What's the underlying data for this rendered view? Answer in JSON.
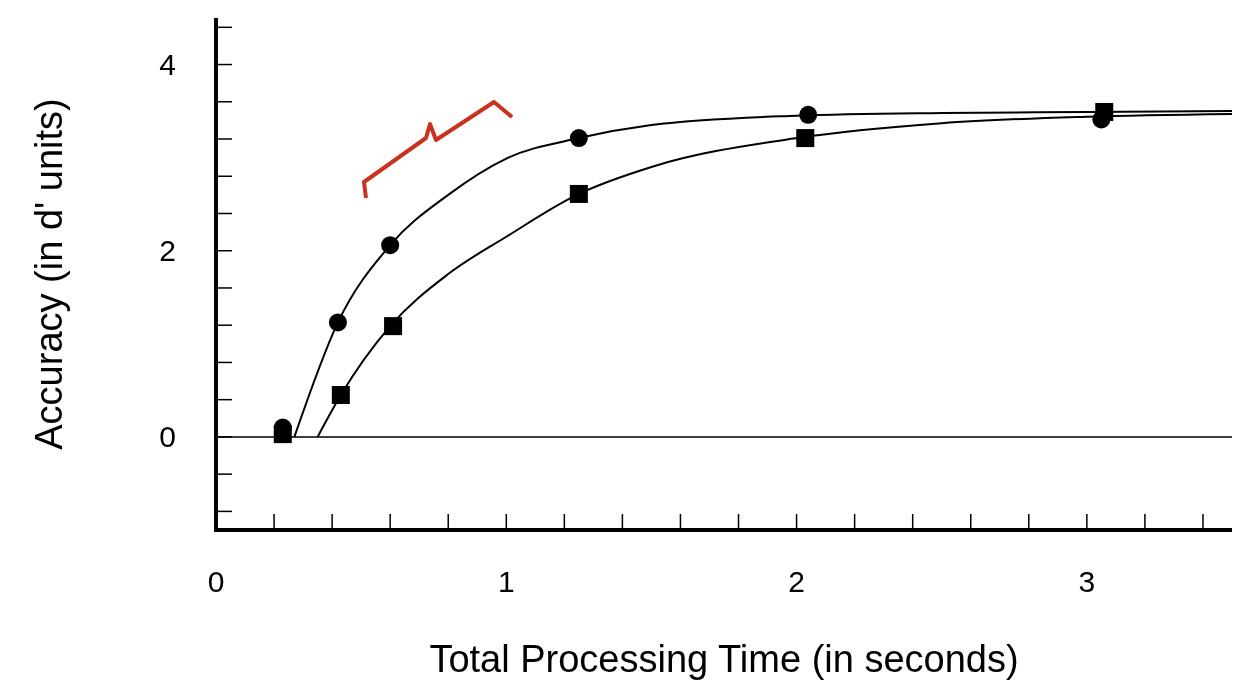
{
  "chart_data": {
    "type": "scatter",
    "xlabel": "Total Processing Time (in seconds)",
    "ylabel": "Accuracy (in d' units)",
    "xlim": [
      0,
      3.5
    ],
    "ylim": [
      -1,
      4.5
    ],
    "xticks": [
      0,
      {
        "value": 0.2,
        "label": null
      },
      {
        "value": 0.4,
        "label": null
      },
      {
        "value": 0.6,
        "label": null
      },
      {
        "value": 0.8,
        "label": null
      },
      1,
      {
        "value": 1.2,
        "label": null
      },
      {
        "value": 1.4,
        "label": null
      },
      {
        "value": 1.6,
        "label": null
      },
      {
        "value": 1.8,
        "label": null
      },
      2,
      {
        "value": 2.2,
        "label": null
      },
      {
        "value": 2.4,
        "label": null
      },
      {
        "value": 2.6,
        "label": null
      },
      {
        "value": 2.8,
        "label": null
      },
      3,
      {
        "value": 3.2,
        "label": null
      },
      {
        "value": 3.4,
        "label": null
      }
    ],
    "yticks": [
      {
        "value": -0.8,
        "label": null
      },
      {
        "value": -0.4,
        "label": null
      },
      0,
      {
        "value": 0.4,
        "label": null
      },
      {
        "value": 0.8,
        "label": null
      },
      {
        "value": 1.2,
        "label": null
      },
      {
        "value": 1.6,
        "label": null
      },
      2,
      {
        "value": 2.4,
        "label": null
      },
      {
        "value": 2.8,
        "label": null
      },
      {
        "value": 3.2,
        "label": null
      },
      {
        "value": 3.6,
        "label": null
      },
      4,
      {
        "value": 4.4,
        "label": null
      }
    ],
    "grid": false,
    "ref_lines": [
      {
        "axis": "y",
        "value": 0,
        "color": "#000000"
      }
    ],
    "series": [
      {
        "type": "line",
        "color": "#000000",
        "marker": "none",
        "line_style": "solid",
        "x": [
          0.27,
          0.42,
          0.6,
          0.8,
          1,
          1.25,
          1.5,
          2,
          2.5,
          3,
          3.5
        ],
        "values": [
          0,
          1.23,
          2.06,
          2.6,
          2.99,
          3.21,
          3.35,
          3.45,
          3.48,
          3.49,
          3.5
        ]
      },
      {
        "type": "line",
        "color": "#000000",
        "marker": "none",
        "line_style": "solid",
        "x": [
          0.35,
          0.43,
          0.6,
          0.8,
          1,
          1.25,
          1.5,
          2,
          2.5,
          3,
          3.5
        ],
        "values": [
          0,
          0.45,
          1.19,
          1.75,
          2.15,
          2.61,
          2.9,
          3.21,
          3.37,
          3.44,
          3.47
        ]
      },
      {
        "color": "#000000",
        "marker": "square",
        "x": [
          0.23,
          0.43,
          0.61,
          1.25,
          2.03,
          3.06
        ],
        "values": [
          0.03,
          0.45,
          1.19,
          2.61,
          3.21,
          3.49
        ]
      },
      {
        "color": "#000000",
        "marker": "circle",
        "x": [
          0.23,
          0.42,
          0.6,
          1.25,
          2.04,
          3.05
        ],
        "values": [
          0.1,
          1.23,
          2.06,
          3.21,
          3.46,
          3.41
        ]
      }
    ]
  }
}
